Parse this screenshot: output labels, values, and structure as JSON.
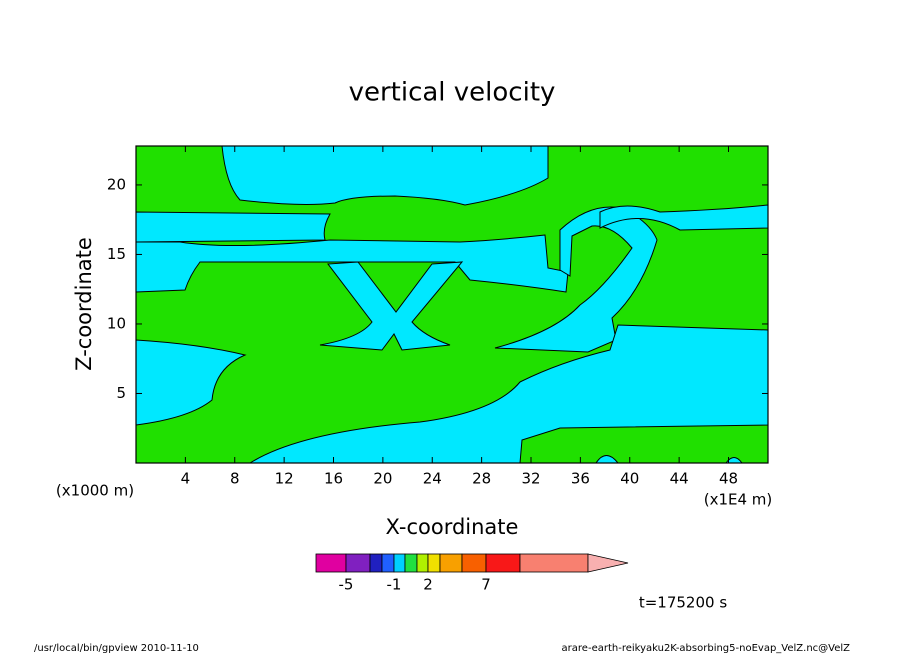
{
  "chart_data": {
    "type": "contour",
    "title": "vertical velocity",
    "x_label": "X-coordinate",
    "y_label": "Z-coordinate",
    "x_unit": "(x1E4 m)",
    "y_unit": "(x1000 m)",
    "xlim": [
      0,
      51.2
    ],
    "ylim": [
      0,
      22.8
    ],
    "xticks": [
      4,
      8,
      12,
      16,
      20,
      24,
      28,
      32,
      36,
      40,
      44,
      48
    ],
    "yticks": [
      5,
      10,
      15,
      20
    ],
    "field_colors": [
      "#20e000",
      "#00e8ff"
    ],
    "colorbar_colors": [
      "#e000a0",
      "#8020c0",
      "#2020c0",
      "#2060ff",
      "#00d0ff",
      "#20e040",
      "#b0f000",
      "#f0e000",
      "#f8a000",
      "#f86000",
      "#f81818",
      "#f88070",
      "#f8b0b0"
    ],
    "colorbar_ticks": [
      -5,
      -1,
      2,
      7
    ],
    "time_label": "t=175200 s",
    "footer_left": "/usr/local/bin/gpview  2010-11-10",
    "footer_right": "arare-earth-reikyaku2K-absorbing5-noEvap_VelZ.nc@VelZ"
  }
}
